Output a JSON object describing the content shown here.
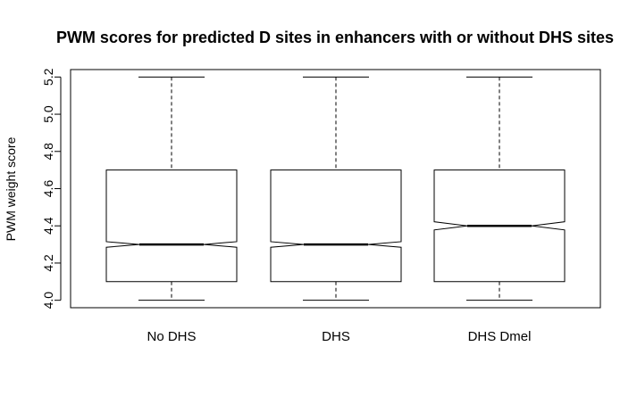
{
  "chart_data": {
    "type": "boxplot",
    "title": "PWM scores for predicted D sites in enhancers with or without DHS sites",
    "xlabel": "",
    "ylabel": "PWM weight score",
    "ylim": [
      3.96,
      5.24
    ],
    "yticks": [
      "4.0",
      "4.2",
      "4.4",
      "4.6",
      "4.8",
      "5.0",
      "5.2"
    ],
    "notched": true,
    "grid": false,
    "categories": [
      "No DHS",
      "DHS",
      "DHS Dmel"
    ],
    "boxes": [
      {
        "category": "No DHS",
        "whisker_low": 4.0,
        "q1": 4.1,
        "median": 4.3,
        "q3": 4.7,
        "whisker_high": 5.2,
        "notch_low": 4.285,
        "notch_high": 4.315
      },
      {
        "category": "DHS",
        "whisker_low": 4.0,
        "q1": 4.1,
        "median": 4.3,
        "q3": 4.7,
        "whisker_high": 5.2,
        "notch_low": 4.285,
        "notch_high": 4.315
      },
      {
        "category": "DHS Dmel",
        "whisker_low": 4.0,
        "q1": 4.1,
        "median": 4.4,
        "q3": 4.7,
        "whisker_high": 5.2,
        "notch_low": 4.378,
        "notch_high": 4.422
      }
    ]
  }
}
